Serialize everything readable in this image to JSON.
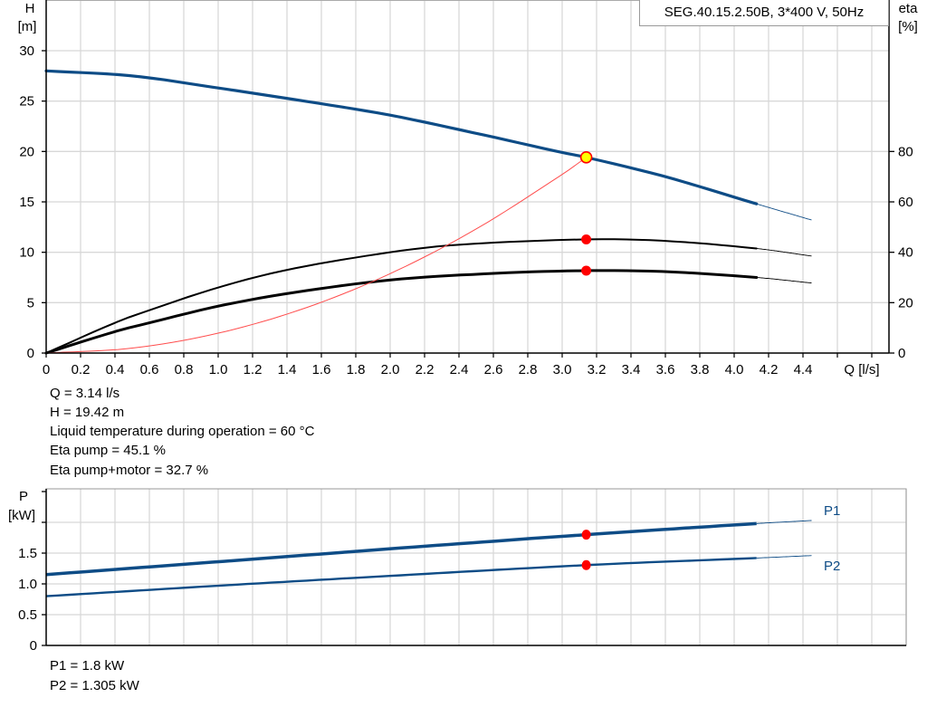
{
  "pump_label": "SEG.40.15.2.50B, 3*400 V, 50Hz",
  "colors": {
    "head": "#0e4c86",
    "eta": "#000000",
    "system": "#ff4d4d",
    "power": "#0e4c86",
    "duty_point": "#ff0000",
    "duty_point_head_fill": "#ffff00",
    "grid": "#d8d8d8"
  },
  "info": {
    "q": "Q = 3.14 l/s",
    "h": "H = 19.42 m",
    "temp": "Liquid temperature during operation = 60 °C",
    "eta_pump": "Eta pump = 45.1 %",
    "eta_pump_motor": "Eta pump+motor = 32.7 %",
    "p1": "P1 = 1.8 kW",
    "p2": "P2 = 1.305 kW"
  },
  "chart_data": [
    {
      "type": "line",
      "xlabel": "Q [l/s]",
      "ylabel": "H",
      "ylabel_unit": "[m]",
      "y2label": "eta",
      "y2label_unit": "[%]",
      "xlim": [
        0,
        4.8
      ],
      "ylim": [
        0,
        35
      ],
      "y2lim": [
        0,
        140
      ],
      "grid": true,
      "x_ticks": [
        "0",
        "0.2",
        "0.4",
        "0.6",
        "0.8",
        "1.0",
        "1.2",
        "1.4",
        "1.6",
        "1.8",
        "2.0",
        "2.2",
        "2.4",
        "2.6",
        "2.8",
        "3.0",
        "3.2",
        "3.4",
        "3.6",
        "3.8",
        "4.0",
        "4.2",
        "4.4"
      ],
      "y_ticks": [
        "0",
        "5",
        "10",
        "15",
        "20",
        "25",
        "30"
      ],
      "y2_ticks": [
        "0",
        "20",
        "40",
        "60",
        "80"
      ],
      "operating_range_max_q": 4.13,
      "series": [
        {
          "id": "head",
          "axis": "y",
          "x": [
            0,
            0.5,
            1.0,
            1.5,
            2.0,
            2.5,
            3.0,
            3.14,
            3.6,
            4.13,
            4.45
          ],
          "y": [
            28,
            27.5,
            26.3,
            25.0,
            23.6,
            21.8,
            19.9,
            19.42,
            17.5,
            14.8,
            13.2
          ]
        },
        {
          "id": "eta_pump",
          "axis": "y2",
          "x": [
            0,
            0.4,
            0.6,
            1.0,
            1.4,
            2.0,
            2.4,
            3.14,
            3.6,
            4.13,
            4.45
          ],
          "y": [
            0,
            12,
            17,
            26,
            33,
            40,
            43,
            45.1,
            44.5,
            41.5,
            38.5
          ]
        },
        {
          "id": "eta_pump_motor",
          "axis": "y2",
          "x": [
            0,
            0.4,
            0.6,
            1.0,
            1.4,
            2.0,
            2.6,
            3.14,
            3.6,
            4.13,
            4.45
          ],
          "y": [
            0,
            8.5,
            12,
            18.6,
            23.6,
            29,
            31.6,
            32.7,
            32.3,
            30,
            27.8
          ]
        },
        {
          "id": "system_curve",
          "axis": "y",
          "x": [
            0,
            0.5,
            1.0,
            1.5,
            2.0,
            2.5,
            3.0,
            3.14
          ],
          "y": [
            0,
            0.49,
            1.97,
            4.43,
            7.88,
            12.31,
            17.72,
            19.42
          ]
        }
      ],
      "duty_points": [
        {
          "id": "head",
          "x": 3.14,
          "y": 19.42,
          "axis": "y"
        },
        {
          "id": "eta_pump",
          "x": 3.14,
          "y": 45.1,
          "axis": "y2"
        },
        {
          "id": "eta_pump_motor",
          "x": 3.14,
          "y": 32.7,
          "axis": "y2"
        }
      ]
    },
    {
      "type": "line",
      "ylabel": "P",
      "ylabel_unit": "[kW]",
      "xlim": [
        0,
        5.0
      ],
      "ylim": [
        0,
        2.5
      ],
      "grid": true,
      "y_ticks": [
        "0",
        "0.5",
        "1.0",
        "1.5"
      ],
      "operating_range_max_q": 4.13,
      "series": [
        {
          "id": "P1",
          "name": "P1",
          "x": [
            0,
            1,
            2,
            3.14,
            4.13,
            4.45
          ],
          "y": [
            1.15,
            1.36,
            1.57,
            1.8,
            1.98,
            2.03
          ]
        },
        {
          "id": "P2",
          "name": "P2",
          "x": [
            0,
            1,
            2,
            3.14,
            4.13,
            4.45
          ],
          "y": [
            0.8,
            0.97,
            1.13,
            1.305,
            1.42,
            1.46
          ]
        }
      ],
      "duty_points": [
        {
          "id": "P1",
          "x": 3.14,
          "y": 1.8
        },
        {
          "id": "P2",
          "x": 3.14,
          "y": 1.305
        }
      ]
    }
  ]
}
